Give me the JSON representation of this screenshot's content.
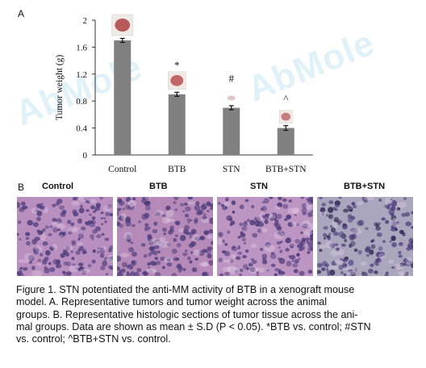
{
  "figure": {
    "panel_a_label": "A",
    "panel_b_label": "B",
    "watermark": "AbMole"
  },
  "chart_data": {
    "type": "bar",
    "categories": [
      "Control",
      "BTB",
      "STN",
      "BTB+STN"
    ],
    "values": [
      1.7,
      0.9,
      0.7,
      0.4
    ],
    "errors": [
      0.03,
      0.03,
      0.03,
      0.035
    ],
    "significance_marks": [
      "",
      "*",
      "#",
      "^"
    ],
    "ylabel": "Tumor weight (g)",
    "xlabel": "",
    "ylim": [
      0,
      2
    ],
    "yticks": [
      0,
      0.4,
      0.8,
      1.2,
      1.6,
      2
    ],
    "ytick_labels": [
      "0",
      "0.4",
      "0.8",
      "1.2",
      "1.6",
      "2"
    ],
    "bar_color": "#808080",
    "grid": false
  },
  "histology": {
    "headers": [
      "Control",
      "BTB",
      "STN",
      "BTB+STN"
    ],
    "stain_colors": [
      "#b98fbf",
      "#b58ab8",
      "#bd95c2",
      "#a9a6bd"
    ]
  },
  "caption_lines": [
    "Figure 1. STN potentiated the anti-MM activity of BTB in a xenograft mouse",
    "model. A. Representative tumors and tumor weight across the animal",
    "groups. B. Representative histologic sections of tumor tissue across the ani-",
    "mal groups. Data are shown as mean ± S.D (P < 0.05). *BTB vs. control; #STN",
    "vs. control; ^BTB+STN vs. control."
  ]
}
